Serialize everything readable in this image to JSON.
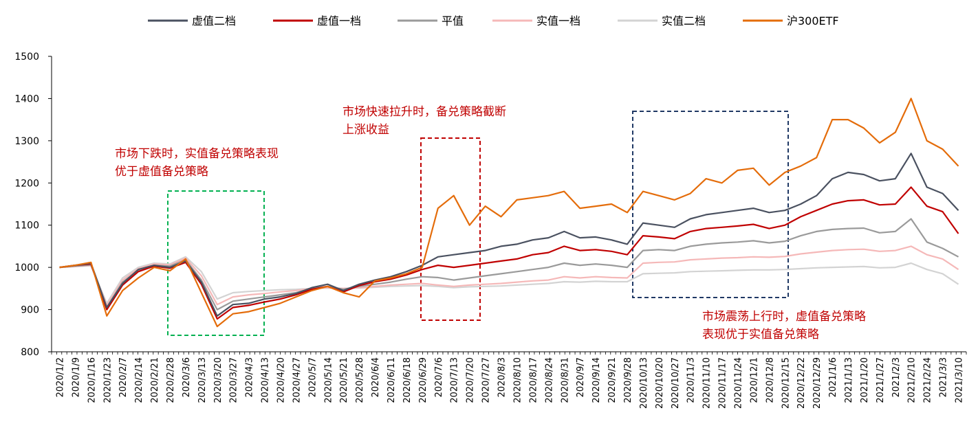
{
  "chart_data": {
    "type": "line",
    "title": "",
    "xlabel": "",
    "ylabel": "",
    "ylim": [
      800,
      1500
    ],
    "yticks": [
      800,
      900,
      1000,
      1100,
      1200,
      1300,
      1400,
      1500
    ],
    "grid": false,
    "legend_position": "top",
    "x_tick_labels": [
      "2020/1/2",
      "2020/1/9",
      "2020/1/16",
      "2020/1/23",
      "2020/2/7",
      "2020/2/14",
      "2020/2/21",
      "2020/2/28",
      "2020/3/6",
      "2020/3/13",
      "2020/3/20",
      "2020/3/27",
      "2020/4/3",
      "2020/4/13",
      "2020/4/20",
      "2020/4/27",
      "2020/5/7",
      "2020/5/14",
      "2020/5/21",
      "2020/5/28",
      "2020/6/4",
      "2020/6/11",
      "2020/6/18",
      "2020/6/29",
      "2020/7/6",
      "2020/7/13",
      "2020/7/20",
      "2020/7/27",
      "2020/8/3",
      "2020/8/10",
      "2020/8/17",
      "2020/8/24",
      "2020/8/31",
      "2020/9/7",
      "2020/9/14",
      "2020/9/21",
      "2020/9/28",
      "2020/10/13",
      "2020/10/20",
      "2020/10/27",
      "2020/11/3",
      "2020/11/10",
      "2020/11/17",
      "2020/11/24",
      "2020/12/1",
      "2020/12/8",
      "2020/12/15",
      "2020/12/22",
      "2020/12/29",
      "2021/1/6",
      "2021/1/13",
      "2021/1/20",
      "2021/1/27",
      "2021/2/3",
      "2021/2/10",
      "2021/2/24",
      "2021/3/3",
      "2021/3/10"
    ],
    "series": [
      {
        "name": "虚值二档",
        "color": "#4a5160",
        "values": [
          1000,
          1005,
          1010,
          905,
          962,
          995,
          1005,
          1000,
          1015,
          965,
          885,
          912,
          915,
          925,
          930,
          938,
          952,
          960,
          945,
          960,
          970,
          978,
          990,
          1005,
          1025,
          1030,
          1035,
          1040,
          1050,
          1055,
          1065,
          1070,
          1085,
          1070,
          1072,
          1065,
          1055,
          1105,
          1100,
          1095,
          1115,
          1125,
          1130,
          1135,
          1140,
          1130,
          1135,
          1150,
          1170,
          1210,
          1225,
          1220,
          1205,
          1210,
          1270,
          1190,
          1175,
          1135
        ]
      },
      {
        "name": "虚值一档",
        "color": "#c00000",
        "values": [
          1000,
          1005,
          1008,
          900,
          958,
          990,
          1003,
          998,
          1012,
          960,
          878,
          905,
          910,
          918,
          925,
          935,
          948,
          955,
          942,
          957,
          966,
          972,
          982,
          995,
          1005,
          1000,
          1005,
          1010,
          1015,
          1020,
          1030,
          1035,
          1050,
          1040,
          1042,
          1038,
          1030,
          1075,
          1072,
          1068,
          1085,
          1092,
          1095,
          1098,
          1102,
          1092,
          1100,
          1120,
          1135,
          1150,
          1158,
          1160,
          1148,
          1150,
          1190,
          1145,
          1132,
          1080
        ]
      },
      {
        "name": "平值",
        "color": "#9a9a9a",
        "values": [
          1000,
          1003,
          1006,
          905,
          965,
          993,
          1005,
          1003,
          1018,
          970,
          900,
          920,
          925,
          930,
          935,
          940,
          950,
          955,
          948,
          955,
          960,
          965,
          972,
          978,
          976,
          970,
          975,
          980,
          985,
          990,
          995,
          1000,
          1010,
          1005,
          1008,
          1005,
          1000,
          1040,
          1042,
          1040,
          1050,
          1055,
          1058,
          1060,
          1063,
          1058,
          1062,
          1075,
          1085,
          1090,
          1092,
          1093,
          1082,
          1085,
          1115,
          1060,
          1045,
          1025
        ]
      },
      {
        "name": "实值一档",
        "color": "#f5b8b8",
        "values": [
          1000,
          1002,
          1005,
          910,
          970,
          997,
          1008,
          1006,
          1022,
          980,
          912,
          930,
          935,
          938,
          942,
          945,
          950,
          952,
          950,
          952,
          955,
          958,
          960,
          962,
          958,
          955,
          958,
          960,
          962,
          965,
          968,
          970,
          978,
          975,
          978,
          976,
          975,
          1010,
          1012,
          1013,
          1018,
          1020,
          1022,
          1023,
          1025,
          1024,
          1026,
          1032,
          1036,
          1040,
          1042,
          1043,
          1038,
          1040,
          1050,
          1030,
          1020,
          995
        ]
      },
      {
        "name": "实值二档",
        "color": "#d3d3d3",
        "values": [
          1000,
          1002,
          1004,
          915,
          975,
          1000,
          1010,
          1008,
          1025,
          990,
          925,
          940,
          943,
          945,
          947,
          948,
          950,
          951,
          950,
          951,
          953,
          955,
          956,
          957,
          955,
          952,
          954,
          955,
          956,
          958,
          960,
          962,
          966,
          965,
          967,
          966,
          966,
          985,
          986,
          987,
          990,
          991,
          992,
          993,
          994,
          994,
          995,
          997,
          999,
          1000,
          1001,
          1002,
          999,
          1000,
          1010,
          995,
          985,
          960
        ]
      },
      {
        "name": "沪300ETF",
        "color": "#e46c0a",
        "values": [
          1000,
          1005,
          1012,
          885,
          945,
          975,
          1000,
          992,
          1020,
          940,
          860,
          890,
          895,
          905,
          915,
          930,
          945,
          955,
          940,
          930,
          968,
          975,
          985,
          1000,
          1140,
          1170,
          1100,
          1145,
          1120,
          1160,
          1165,
          1170,
          1180,
          1140,
          1145,
          1150,
          1130,
          1180,
          1170,
          1160,
          1175,
          1210,
          1200,
          1230,
          1235,
          1195,
          1225,
          1240,
          1260,
          1350,
          1350,
          1330,
          1295,
          1320,
          1400,
          1300,
          1280,
          1240
        ]
      }
    ],
    "annotations": [
      {
        "lines": [
          "市场下跌时，实值备兑策略表现",
          "优于虚值备兑策略"
        ],
        "color": "#c00000",
        "box_color": "#00b050"
      },
      {
        "lines": [
          "市场快速拉升时，备兑策略截断",
          "上涨收益"
        ],
        "color": "#c00000",
        "box_color": "#c00000"
      },
      {
        "lines": [
          "市场震荡上行时，虚值备兑策略",
          "表现优于实值备兑策略"
        ],
        "color": "#c00000",
        "box_color": "#1f3864"
      }
    ]
  }
}
